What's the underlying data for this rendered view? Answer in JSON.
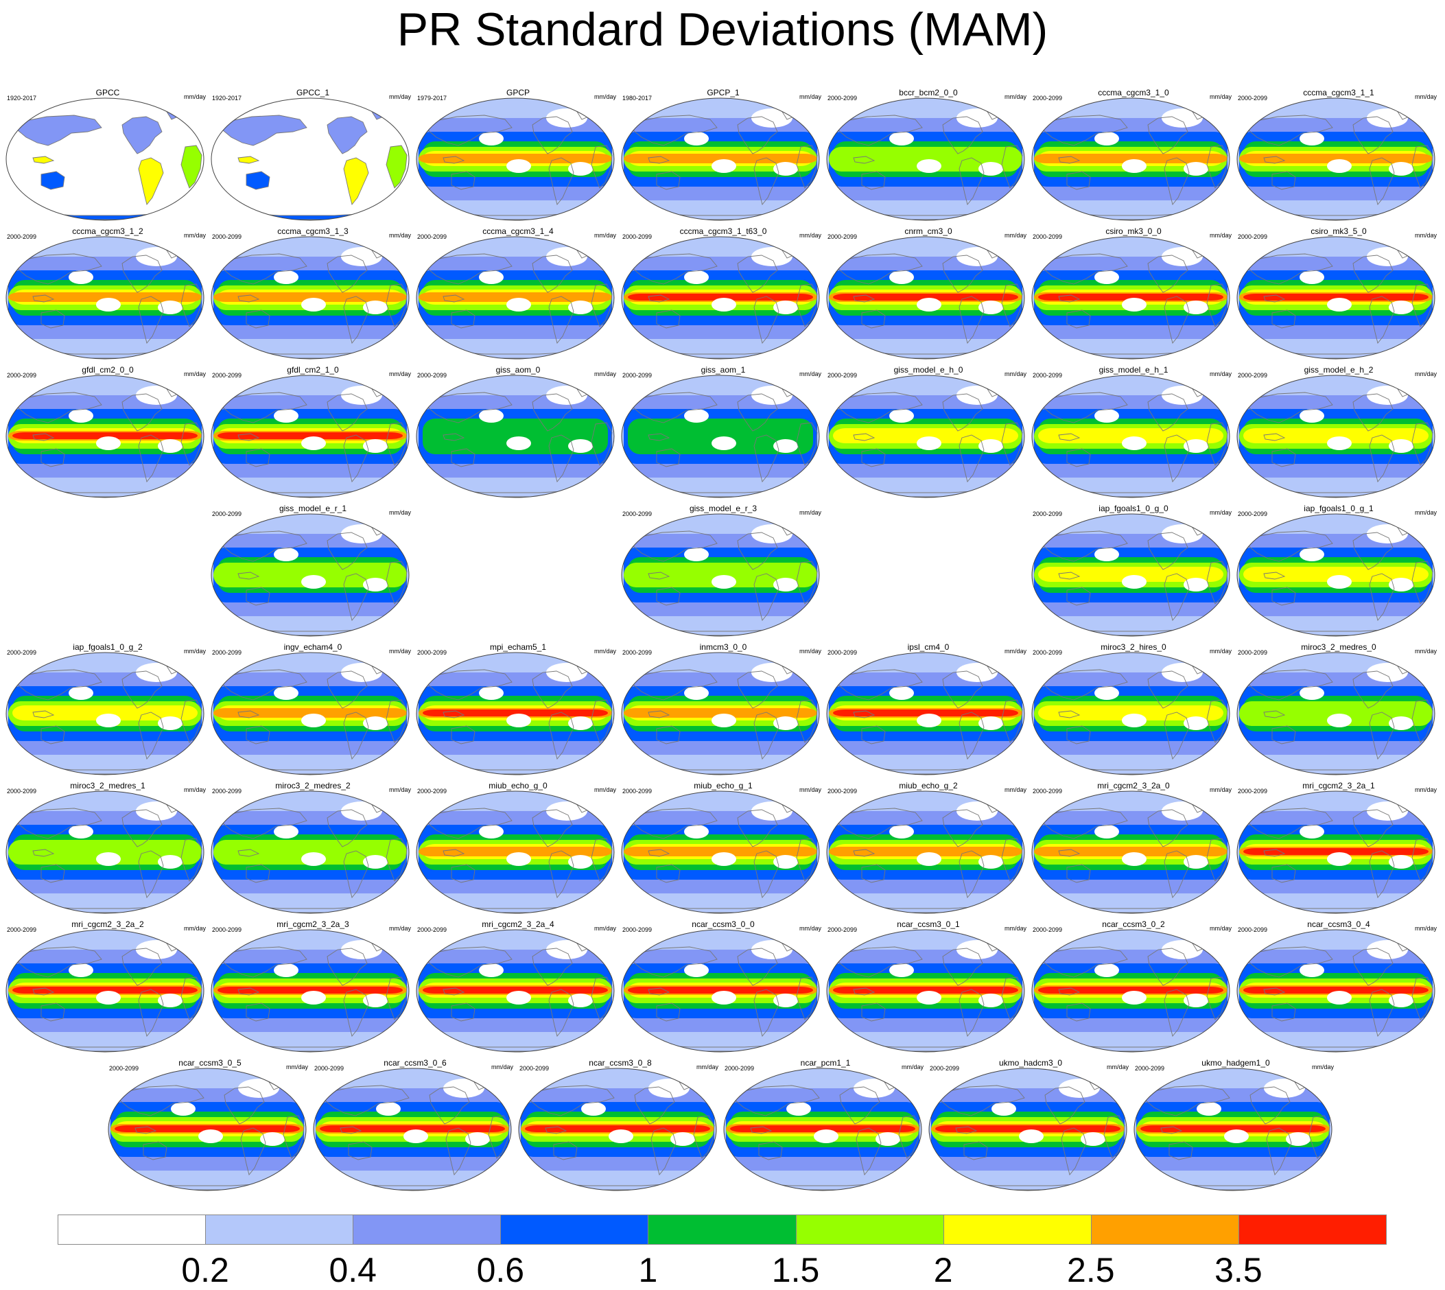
{
  "title": "PR Standard Deviations (MAM)",
  "chart_data": {
    "type": "heatmap",
    "title": "PR Standard Deviations (MAM)",
    "variable": "PR",
    "season": "MAM",
    "units": "mm/day",
    "colorbar": {
      "levels": [
        "0.2",
        "0.4",
        "0.6",
        "1",
        "1.5",
        "2",
        "2.5",
        "3.5"
      ],
      "colors": [
        "#ffffff",
        "#b4c8fa",
        "#8296f5",
        "#005aff",
        "#00be32",
        "#96ff00",
        "#ffff00",
        "#ffa000",
        "#ff1e00"
      ]
    },
    "panels": [
      {
        "name": "GPCC",
        "years": "1920-2017",
        "units": "mm/day",
        "land_only": true,
        "max_level": 6
      },
      {
        "name": "GPCC_1",
        "years": "1920-2017",
        "units": "mm/day",
        "land_only": true,
        "max_level": 6
      },
      {
        "name": "GPCP",
        "years": "1979-2017",
        "units": "mm/day",
        "max_level": 7
      },
      {
        "name": "GPCP_1",
        "years": "1980-2017",
        "units": "mm/day",
        "max_level": 7
      },
      {
        "name": "bccr_bcm2_0_0",
        "years": "2000-2099",
        "units": "mm/day",
        "max_level": 5
      },
      {
        "name": "cccma_cgcm3_1_0",
        "years": "2000-2099",
        "units": "mm/day",
        "max_level": 7
      },
      {
        "name": "cccma_cgcm3_1_1",
        "years": "2000-2099",
        "units": "mm/day",
        "max_level": 7
      },
      {
        "name": "cccma_cgcm3_1_2",
        "years": "2000-2099",
        "units": "mm/day",
        "max_level": 7
      },
      {
        "name": "cccma_cgcm3_1_3",
        "years": "2000-2099",
        "units": "mm/day",
        "max_level": 7
      },
      {
        "name": "cccma_cgcm3_1_4",
        "years": "2000-2099",
        "units": "mm/day",
        "max_level": 7
      },
      {
        "name": "cccma_cgcm3_1_t63_0",
        "years": "2000-2099",
        "units": "mm/day",
        "max_level": 8
      },
      {
        "name": "cnrm_cm3_0",
        "years": "2000-2099",
        "units": "mm/day",
        "max_level": 8
      },
      {
        "name": "csiro_mk3_0_0",
        "years": "2000-2099",
        "units": "mm/day",
        "max_level": 8
      },
      {
        "name": "csiro_mk3_5_0",
        "years": "2000-2099",
        "units": "mm/day",
        "max_level": 8
      },
      {
        "name": "gfdl_cm2_0_0",
        "years": "2000-2099",
        "units": "mm/day",
        "max_level": 8
      },
      {
        "name": "gfdl_cm2_1_0",
        "years": "2000-2099",
        "units": "mm/day",
        "max_level": 8
      },
      {
        "name": "giss_aom_0",
        "years": "2000-2099",
        "units": "mm/day",
        "max_level": 4
      },
      {
        "name": "giss_aom_1",
        "years": "2000-2099",
        "units": "mm/day",
        "max_level": 4
      },
      {
        "name": "giss_model_e_h_0",
        "years": "2000-2099",
        "units": "mm/day",
        "max_level": 6
      },
      {
        "name": "giss_model_e_h_1",
        "years": "2000-2099",
        "units": "mm/day",
        "max_level": 6
      },
      {
        "name": "giss_model_e_h_2",
        "years": "2000-2099",
        "units": "mm/day",
        "max_level": 6
      },
      {
        "name": "giss_model_e_r_1",
        "years": "2000-2099",
        "units": "mm/day",
        "max_level": 5
      },
      {
        "name": "giss_model_e_r_3",
        "years": "2000-2099",
        "units": "mm/day",
        "max_level": 5
      },
      {
        "name": "iap_fgoals1_0_g_0",
        "years": "2000-2099",
        "units": "mm/day",
        "max_level": 6
      },
      {
        "name": "iap_fgoals1_0_g_1",
        "years": "2000-2099",
        "units": "mm/day",
        "max_level": 6
      },
      {
        "name": "iap_fgoals1_0_g_2",
        "years": "2000-2099",
        "units": "mm/day",
        "max_level": 6
      },
      {
        "name": "ingv_echam4_0",
        "years": "2000-2099",
        "units": "mm/day",
        "max_level": 7
      },
      {
        "name": "mpi_echam5_1",
        "years": "2000-2099",
        "units": "mm/day",
        "max_level": 8
      },
      {
        "name": "inmcm3_0_0",
        "years": "2000-2099",
        "units": "mm/day",
        "max_level": 7
      },
      {
        "name": "ipsl_cm4_0",
        "years": "2000-2099",
        "units": "mm/day",
        "max_level": 8
      },
      {
        "name": "miroc3_2_hires_0",
        "years": "2000-2099",
        "units": "mm/day",
        "max_level": 6
      },
      {
        "name": "miroc3_2_medres_0",
        "years": "2000-2099",
        "units": "mm/day",
        "max_level": 5
      },
      {
        "name": "miroc3_2_medres_1",
        "years": "2000-2099",
        "units": "mm/day",
        "max_level": 5
      },
      {
        "name": "miroc3_2_medres_2",
        "years": "2000-2099",
        "units": "mm/day",
        "max_level": 5
      },
      {
        "name": "miub_echo_g_0",
        "years": "2000-2099",
        "units": "mm/day",
        "max_level": 7
      },
      {
        "name": "miub_echo_g_1",
        "years": "2000-2099",
        "units": "mm/day",
        "max_level": 7
      },
      {
        "name": "miub_echo_g_2",
        "years": "2000-2099",
        "units": "mm/day",
        "max_level": 7
      },
      {
        "name": "mri_cgcm2_3_2a_0",
        "years": "2000-2099",
        "units": "mm/day",
        "max_level": 7
      },
      {
        "name": "mri_cgcm2_3_2a_1",
        "years": "2000-2099",
        "units": "mm/day",
        "max_level": 8
      },
      {
        "name": "mri_cgcm2_3_2a_2",
        "years": "2000-2099",
        "units": "mm/day",
        "max_level": 8
      },
      {
        "name": "mri_cgcm2_3_2a_3",
        "years": "2000-2099",
        "units": "mm/day",
        "max_level": 8
      },
      {
        "name": "mri_cgcm2_3_2a_4",
        "years": "2000-2099",
        "units": "mm/day",
        "max_level": 8
      },
      {
        "name": "ncar_ccsm3_0_0",
        "years": "2000-2099",
        "units": "mm/day",
        "max_level": 8
      },
      {
        "name": "ncar_ccsm3_0_1",
        "years": "2000-2099",
        "units": "mm/day",
        "max_level": 8
      },
      {
        "name": "ncar_ccsm3_0_2",
        "years": "2000-2099",
        "units": "mm/day",
        "max_level": 8
      },
      {
        "name": "ncar_ccsm3_0_4",
        "years": "2000-2099",
        "units": "mm/day",
        "max_level": 8
      },
      {
        "name": "ncar_ccsm3_0_5",
        "years": "2000-2099",
        "units": "mm/day",
        "max_level": 8
      },
      {
        "name": "ncar_ccsm3_0_6",
        "years": "2000-2099",
        "units": "mm/day",
        "max_level": 8
      },
      {
        "name": "ncar_ccsm3_0_8",
        "years": "2000-2099",
        "units": "mm/day",
        "max_level": 8
      },
      {
        "name": "ncar_pcm1_1",
        "years": "2000-2099",
        "units": "mm/day",
        "max_level": 8
      },
      {
        "name": "ukmo_hadcm3_0",
        "years": "2000-2099",
        "units": "mm/day",
        "max_level": 8
      },
      {
        "name": "ukmo_hadgem1_0",
        "years": "2000-2099",
        "units": "mm/day",
        "max_level": 8
      }
    ]
  }
}
